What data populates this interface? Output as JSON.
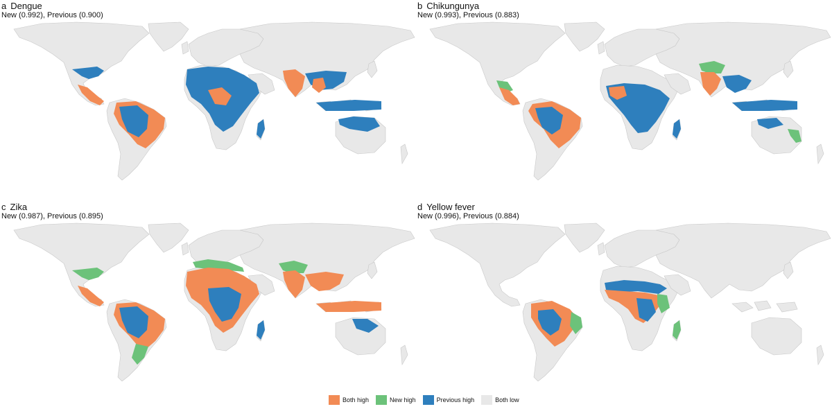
{
  "colors": {
    "land": "#e8e8e8",
    "border": "#c8c8c8",
    "both_high": "#f28b55",
    "new_high": "#6cc27a",
    "previous_high": "#2e7fbd"
  },
  "legend": {
    "items": [
      {
        "key": "both_high",
        "label": "Both high"
      },
      {
        "key": "new_high",
        "label": "New high"
      },
      {
        "key": "previous_high",
        "label": "Previous high"
      },
      {
        "key": "land",
        "label": "Both low"
      }
    ]
  },
  "panels": [
    {
      "letter": "a",
      "title": "Dengue",
      "subtitle": "New (0.992), Previous (0.900)"
    },
    {
      "letter": "b",
      "title": "Chikungunya",
      "subtitle": "New (0.993), Previous (0.883)"
    },
    {
      "letter": "c",
      "title": "Zika",
      "subtitle": "New (0.987), Previous (0.895)"
    },
    {
      "letter": "d",
      "title": "Yellow fever",
      "subtitle": "New (0.996), Previous (0.884)"
    }
  ]
}
